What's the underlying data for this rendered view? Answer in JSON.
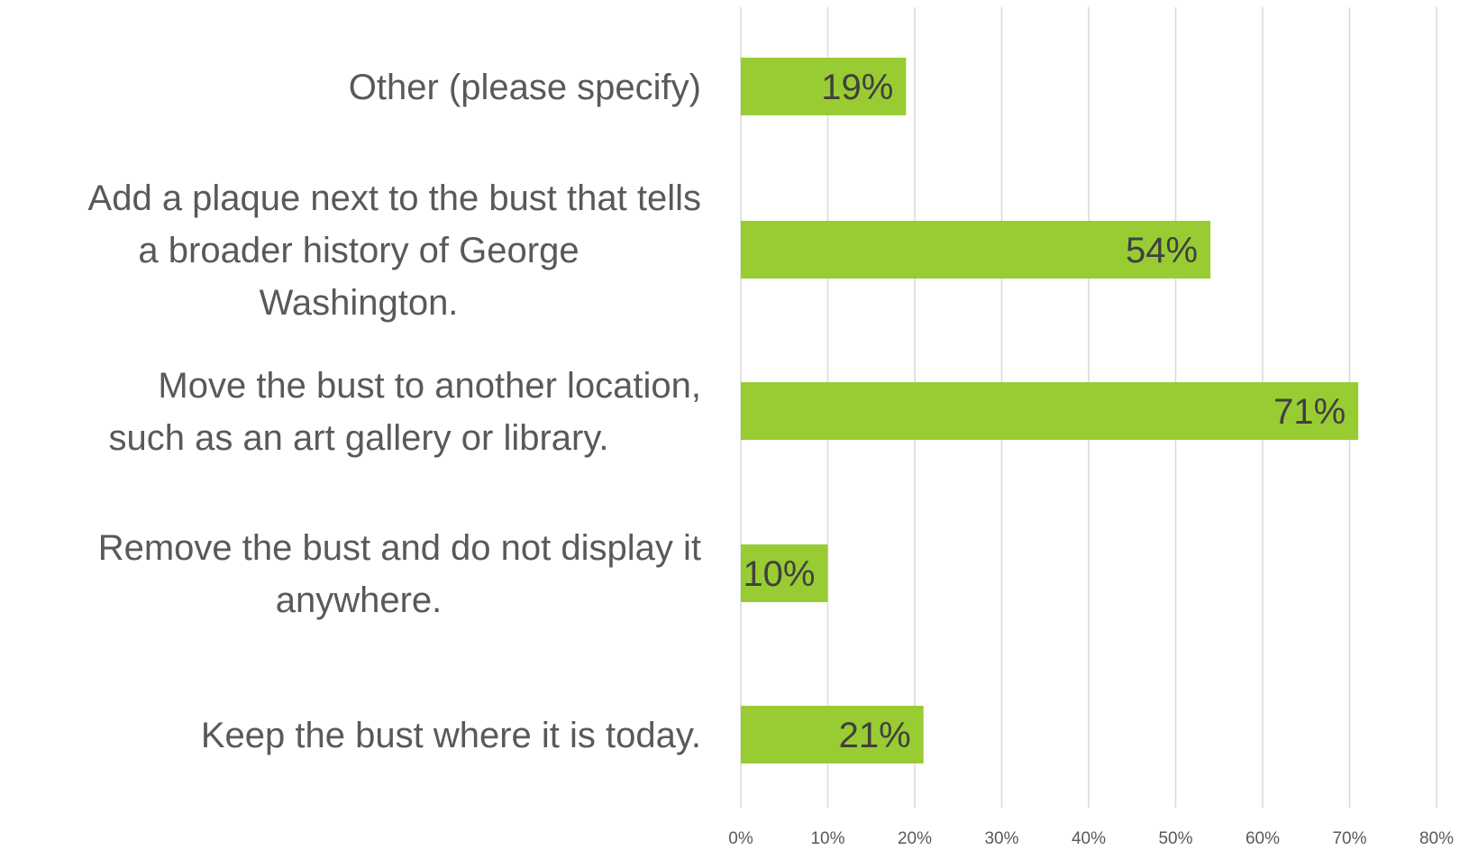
{
  "chart_data": {
    "type": "bar",
    "orientation": "horizontal",
    "categories": [
      "Other (please specify)",
      "Add a plaque next to the bust that tells a broader history of George Washington.",
      "Move the bust to another location, such as an art gallery or library.",
      "Remove the bust and do not display it anywhere.",
      "Keep the bust where it is today."
    ],
    "category_lines": [
      [
        "Other (please specify)"
      ],
      [
        "Add a plaque next to the bust that tells",
        "a broader history of George",
        "Washington."
      ],
      [
        "Move the bust to another location,",
        "such as an art gallery or library."
      ],
      [
        "Remove the bust and do not display it",
        "anywhere."
      ],
      [
        "Keep the bust where it is today."
      ]
    ],
    "values": [
      19,
      54,
      71,
      10,
      21
    ],
    "data_labels": [
      "19%",
      "54%",
      "71%",
      "10%",
      "21%"
    ],
    "xlim": [
      0,
      80
    ],
    "x_ticks": [
      0,
      10,
      20,
      30,
      40,
      50,
      60,
      70,
      80
    ],
    "x_tick_labels": [
      "0%",
      "10%",
      "20%",
      "30%",
      "40%",
      "50%",
      "60%",
      "70%",
      "80%"
    ],
    "grid": "vertical",
    "bar_color": "#99cc33",
    "gridline_color": "#d9d9d9",
    "title": "",
    "xlabel": "",
    "ylabel": ""
  }
}
